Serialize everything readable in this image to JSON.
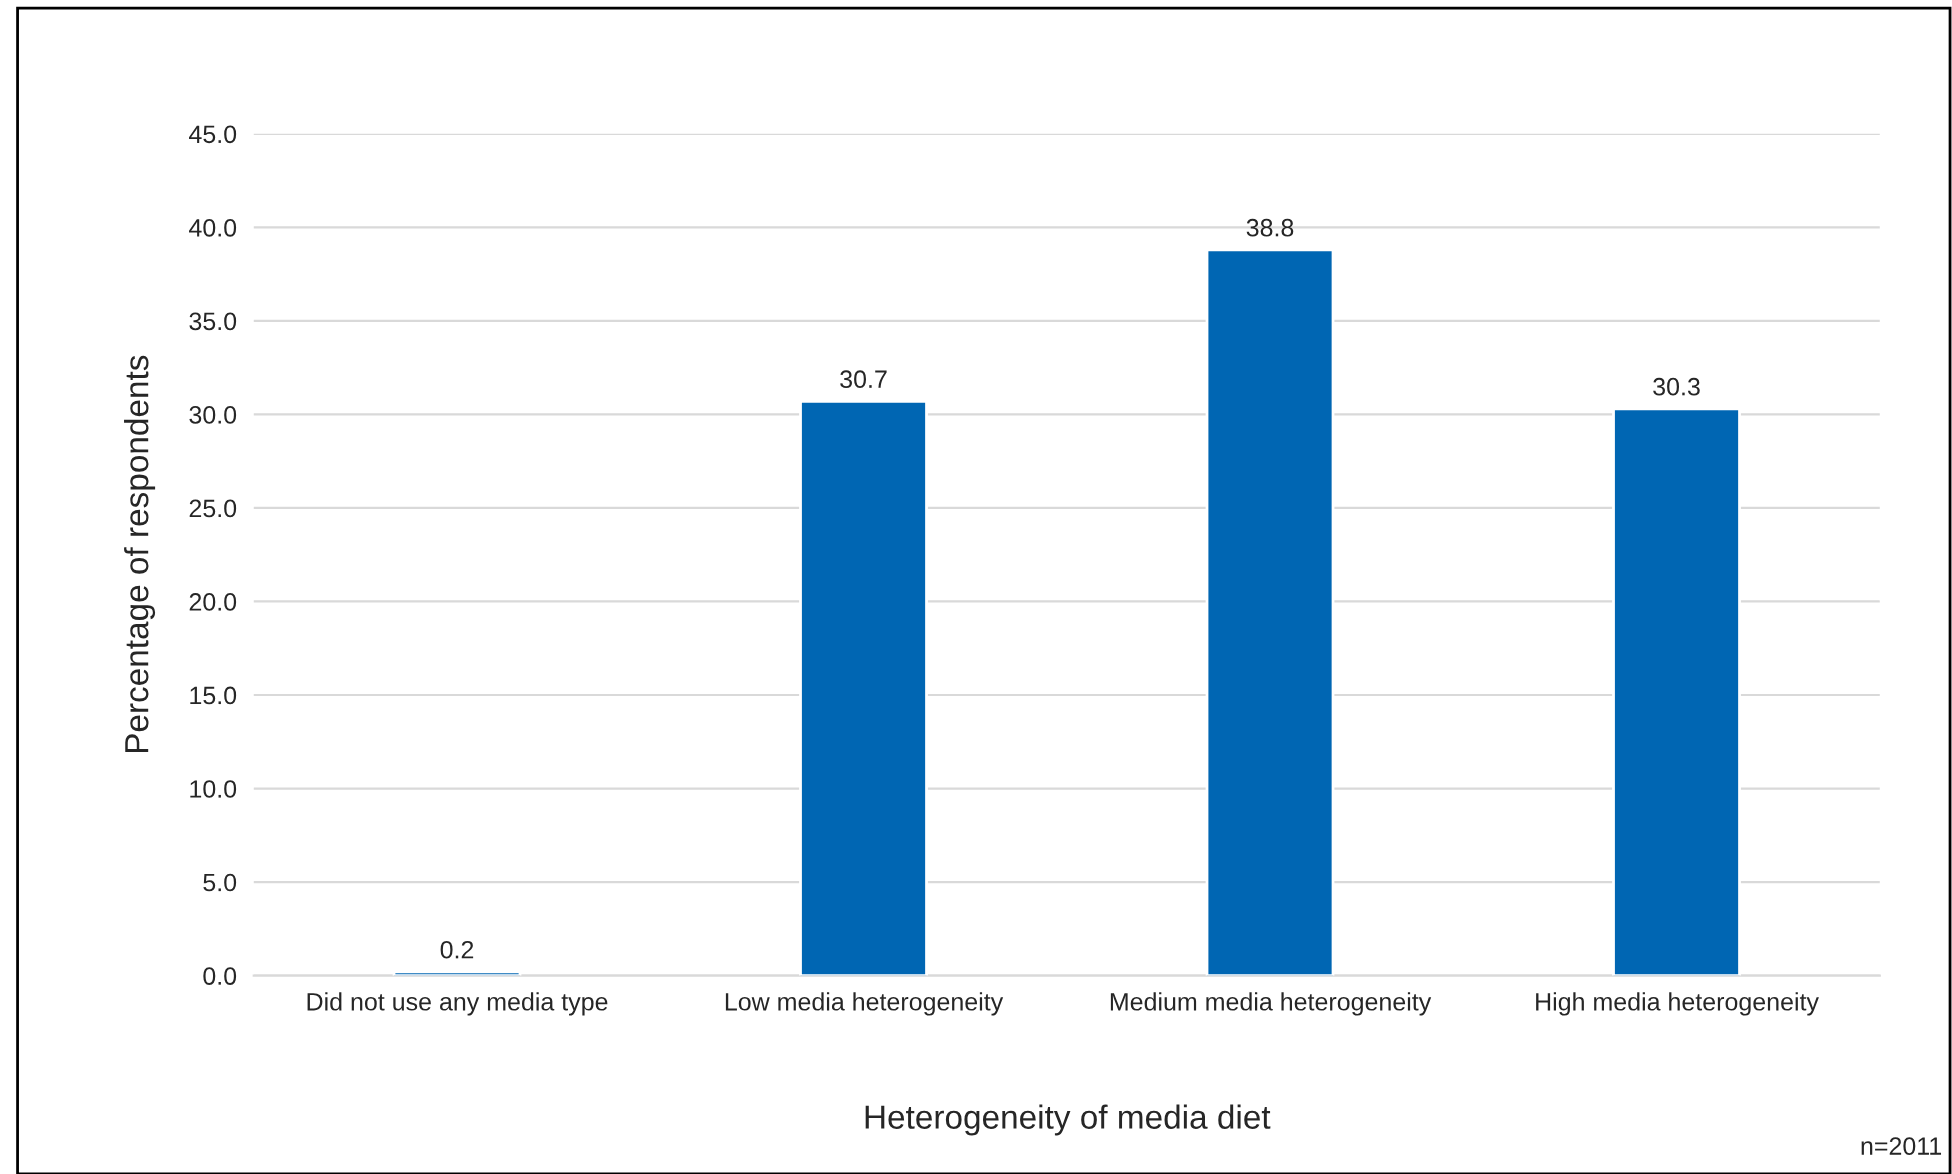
{
  "chart_data": {
    "type": "bar",
    "xlabel": "Heterogeneity of media diet",
    "ylabel": "Percentage of respondents",
    "categories": [
      "Did not use any media type",
      "Low media heterogeneity",
      "Medium media heterogeneity",
      "High media heterogeneity"
    ],
    "values": [
      0.2,
      30.7,
      38.8,
      30.3
    ],
    "color": "#0066b3",
    "ylim": [
      0,
      45
    ],
    "yticks": [
      {
        "value": 0,
        "label": "0.0"
      },
      {
        "value": 5,
        "label": "5.0"
      },
      {
        "value": 10,
        "label": "10.0"
      },
      {
        "value": 15,
        "label": "15.0"
      },
      {
        "value": 20,
        "label": "20.0"
      },
      {
        "value": 25,
        "label": "25.0"
      },
      {
        "value": 30,
        "label": "30.0"
      },
      {
        "value": 35,
        "label": "35.0"
      },
      {
        "value": 40,
        "label": "40.0"
      },
      {
        "value": 45,
        "label": "45.0"
      }
    ],
    "grid": "y",
    "data_labels": true,
    "legend": false,
    "annotations": [
      "n=2011"
    ]
  }
}
